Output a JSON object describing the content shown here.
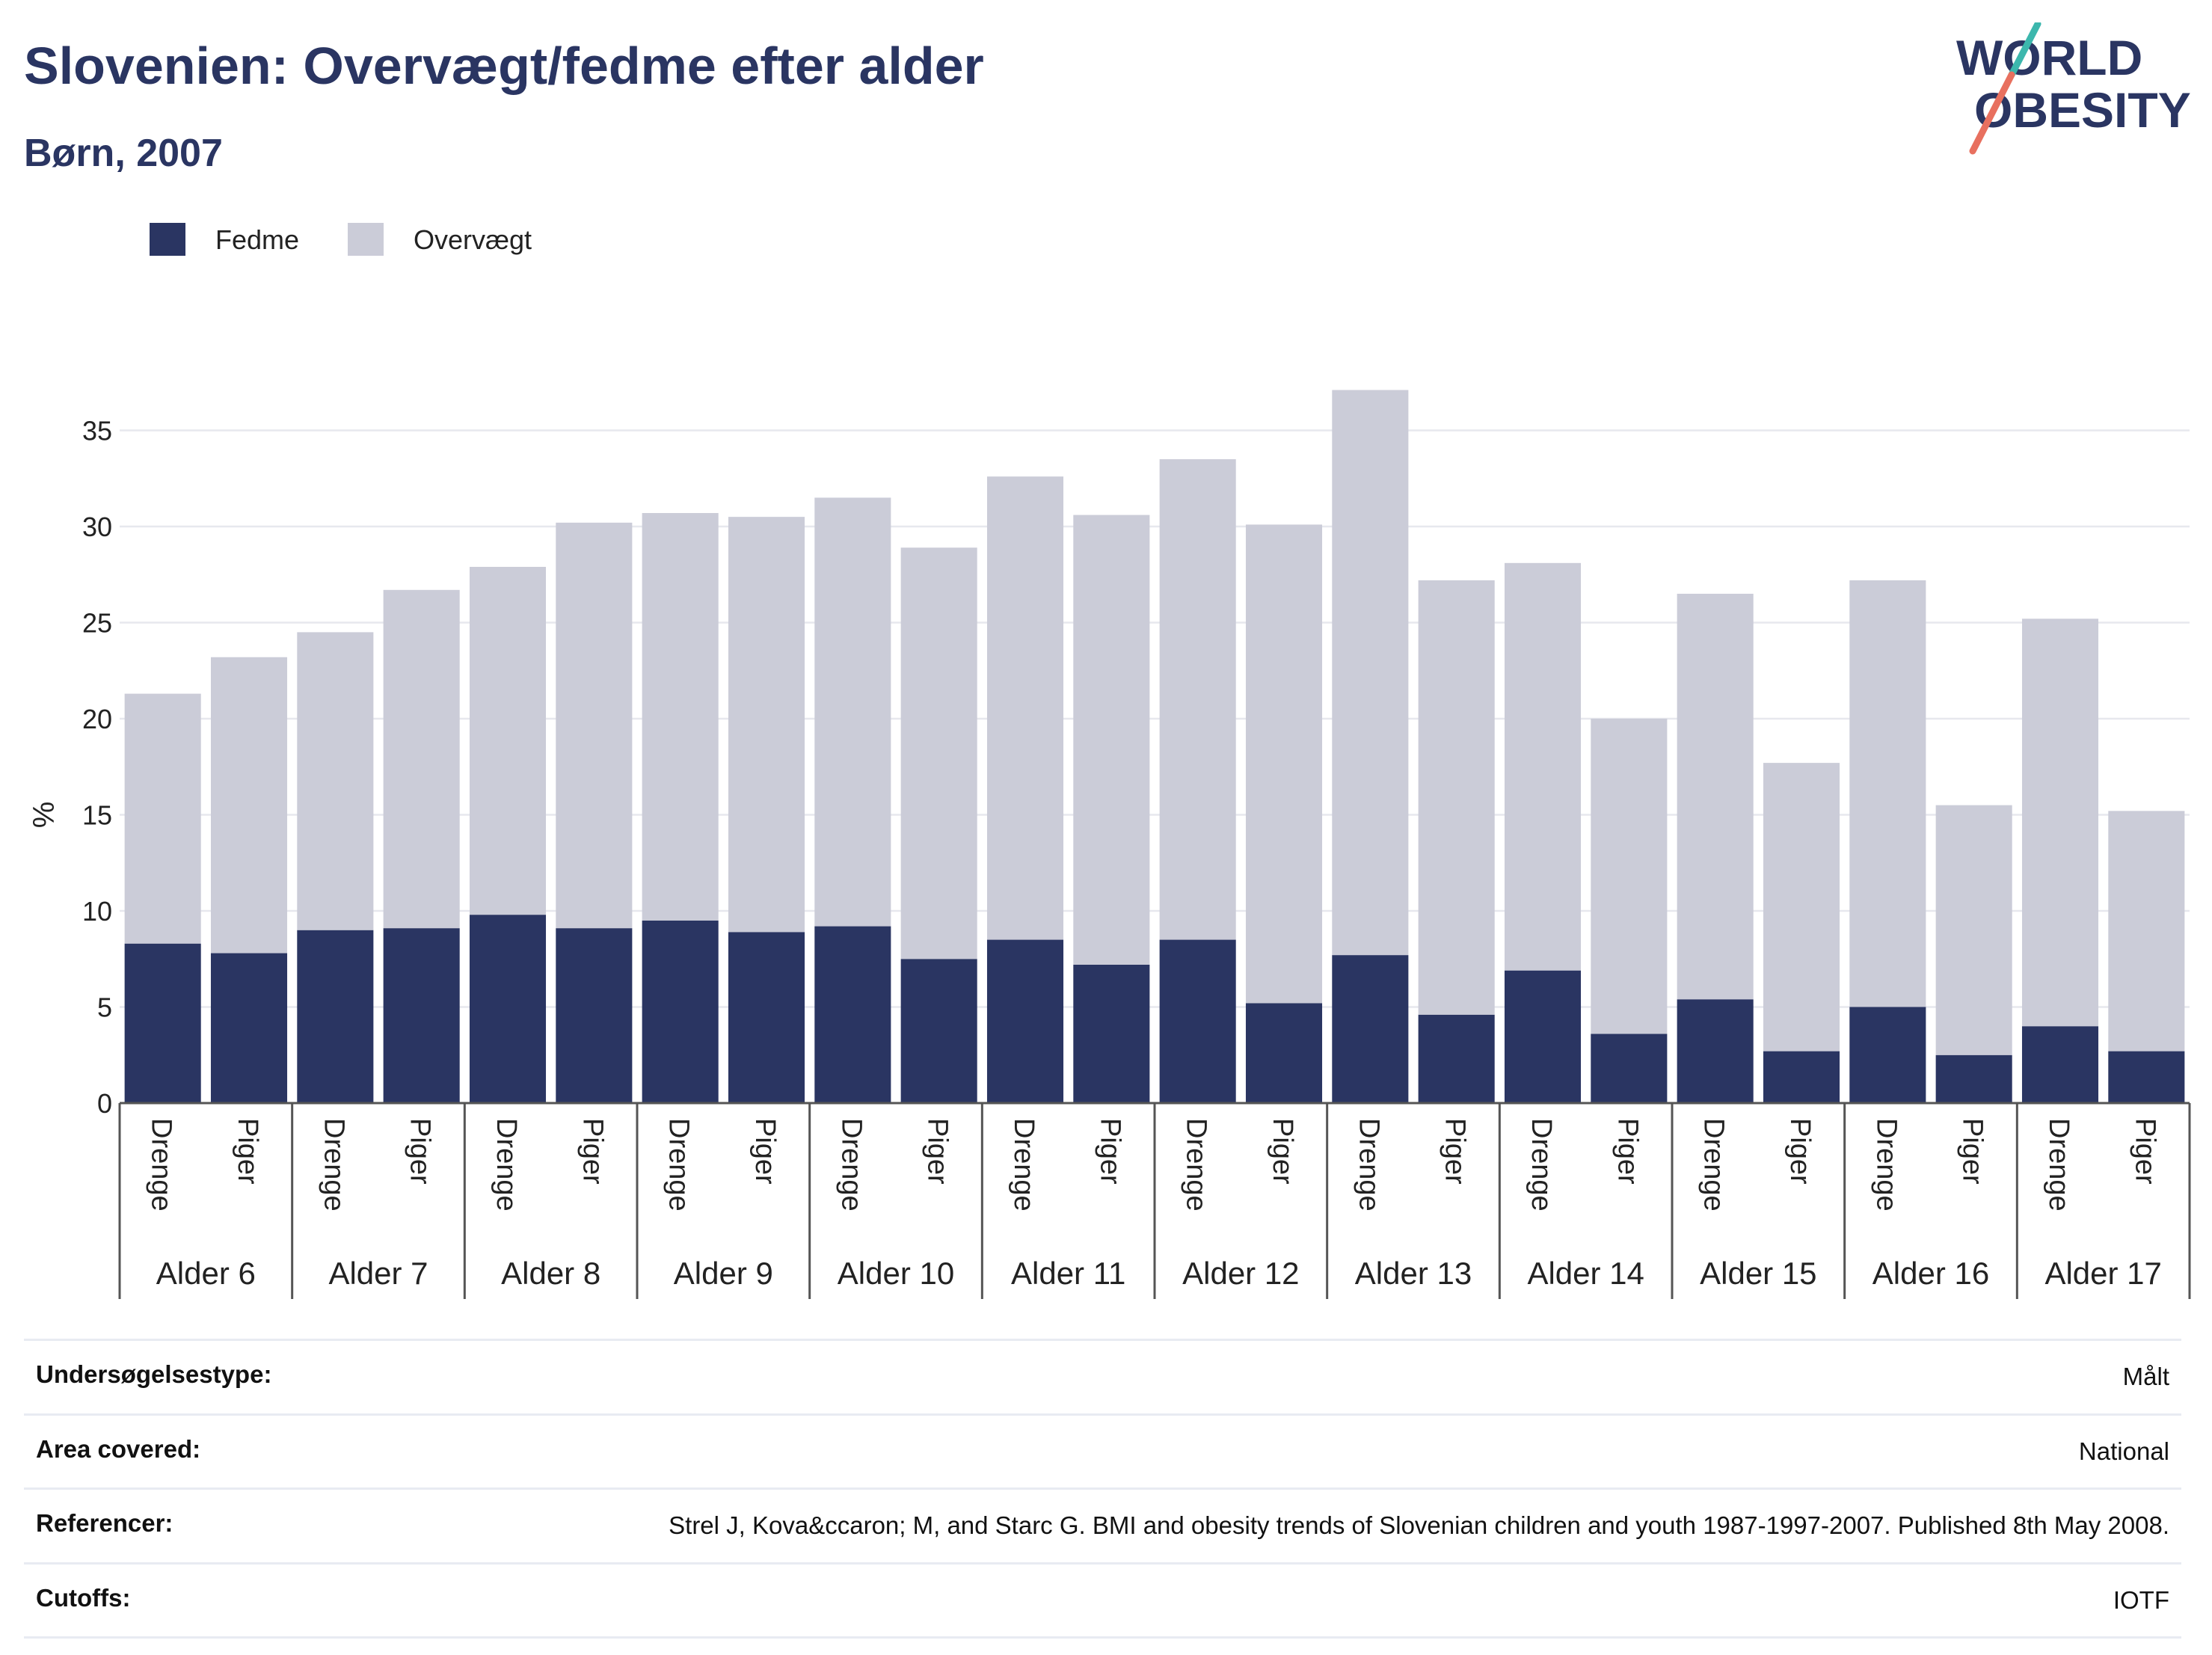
{
  "header": {
    "title": "Slovenien: Overvægt/fedme efter alder",
    "subtitle": "Børn, 2007"
  },
  "logo": {
    "line1": "WORLD",
    "line2": "OBESITY",
    "colors": {
      "text": "#2a3562",
      "slash_teal": "#3cb7ad",
      "slash_coral": "#e8705f"
    }
  },
  "colors": {
    "fedme": "#2a3562",
    "overvaegt": "#cbccd8",
    "grid": "#e7e8ee",
    "axis": "#555555",
    "text": "#2a3562"
  },
  "chart_data": {
    "type": "bar",
    "stacked": true,
    "ylabel": "%",
    "ylim": [
      0,
      38
    ],
    "yticks": [
      0,
      5,
      10,
      15,
      20,
      25,
      30,
      35
    ],
    "legend": [
      "Fedme",
      "Overvægt"
    ],
    "legend_position": "top-left",
    "groups": [
      "Alder 6",
      "Alder 7",
      "Alder 8",
      "Alder 9",
      "Alder 10",
      "Alder 11",
      "Alder 12",
      "Alder 13",
      "Alder 14",
      "Alder 15",
      "Alder 16",
      "Alder 17"
    ],
    "subcategories": [
      "Drenge",
      "Piger"
    ],
    "series": [
      {
        "name": "Fedme",
        "values": [
          8.3,
          7.8,
          9.0,
          9.1,
          9.8,
          9.1,
          9.5,
          8.9,
          9.2,
          7.5,
          8.5,
          7.2,
          8.5,
          5.2,
          7.7,
          4.6,
          6.9,
          3.6,
          5.4,
          2.7,
          5.0,
          2.5,
          4.0,
          2.7
        ]
      },
      {
        "name": "Overvægt",
        "values": [
          13.0,
          15.4,
          15.5,
          17.6,
          18.1,
          21.1,
          21.2,
          21.6,
          22.3,
          21.4,
          24.1,
          23.4,
          25.0,
          24.9,
          29.4,
          22.6,
          21.2,
          16.4,
          21.1,
          15.0,
          22.2,
          13.0,
          21.2,
          12.5
        ]
      }
    ]
  },
  "meta": [
    {
      "label": "Undersøgelsestype:",
      "value": "Målt"
    },
    {
      "label": "Area covered:",
      "value": "National"
    },
    {
      "label": "Referencer:",
      "value": "Strel J, Kova&ccaron; M, and Starc G. BMI and obesity trends of Slovenian children and youth 1987-1997-2007. Published 8th May 2008."
    },
    {
      "label": "Cutoffs:",
      "value": "IOTF"
    }
  ]
}
